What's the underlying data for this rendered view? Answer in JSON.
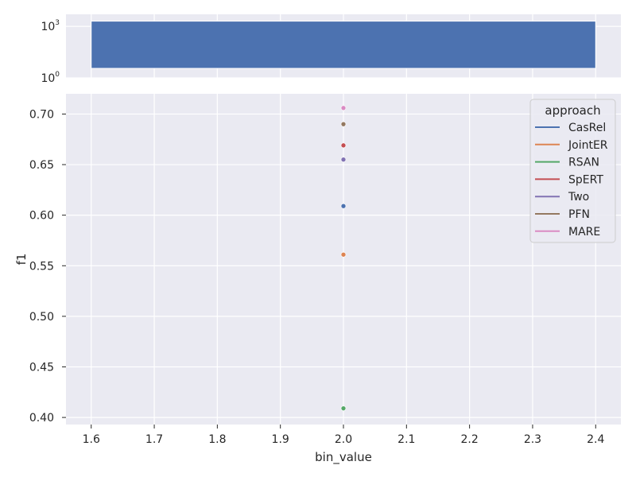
{
  "chart_data": [
    {
      "type": "bar",
      "panel": "top",
      "yscale": "log",
      "ytick_labels": [
        {
          "base": "10",
          "exp": "0",
          "value": 1
        },
        {
          "base": "10",
          "exp": "3",
          "value": 1000
        }
      ],
      "ylim": [
        1,
        5000
      ],
      "xlim": [
        1.56,
        2.44
      ],
      "bars": [
        {
          "x_start": 1.6,
          "x_end": 2.4,
          "value": 2000
        }
      ],
      "color": "#4c72b0",
      "grid": true
    },
    {
      "type": "scatter",
      "panel": "bottom",
      "xlabel": "bin_value",
      "ylabel": "f1",
      "xlim": [
        1.56,
        2.44
      ],
      "ylim": [
        0.393,
        0.72
      ],
      "xticks": [
        1.6,
        1.7,
        1.8,
        1.9,
        2.0,
        2.1,
        2.2,
        2.3,
        2.4
      ],
      "xtick_labels": [
        "1.6",
        "1.7",
        "1.8",
        "1.9",
        "2.0",
        "2.1",
        "2.2",
        "2.3",
        "2.4"
      ],
      "yticks": [
        0.4,
        0.45,
        0.5,
        0.55,
        0.6,
        0.65,
        0.7
      ],
      "ytick_labels": [
        "0.40",
        "0.45",
        "0.50",
        "0.55",
        "0.60",
        "0.65",
        "0.70"
      ],
      "legend_title": "approach",
      "legend_position": "top-right",
      "grid": true,
      "series": [
        {
          "name": "CasRel",
          "color": "#4c72b0",
          "points": [
            [
              2.0,
              0.609
            ]
          ]
        },
        {
          "name": "JointER",
          "color": "#dd8452",
          "points": [
            [
              2.0,
              0.561
            ]
          ]
        },
        {
          "name": "RSAN",
          "color": "#55a868",
          "points": [
            [
              2.0,
              0.409
            ]
          ]
        },
        {
          "name": "SpERT",
          "color": "#c44e52",
          "points": [
            [
              2.0,
              0.669
            ]
          ]
        },
        {
          "name": "Two",
          "color": "#8172b3",
          "points": [
            [
              2.0,
              0.655
            ]
          ]
        },
        {
          "name": "PFN",
          "color": "#937860",
          "points": [
            [
              2.0,
              0.69
            ]
          ]
        },
        {
          "name": "MARE",
          "color": "#da8bc3",
          "points": [
            [
              2.0,
              0.706
            ]
          ]
        }
      ]
    }
  ],
  "theme": {
    "panel_bg": "#eaeaf2",
    "grid": "#ffffff",
    "text": "#262626"
  }
}
